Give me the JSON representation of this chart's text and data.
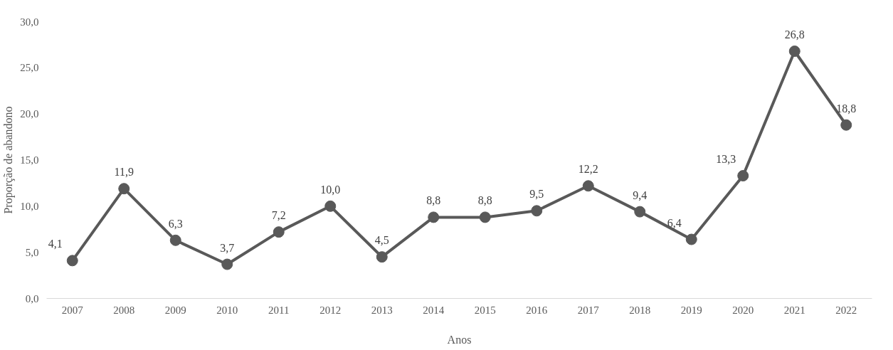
{
  "chart_data": {
    "type": "line",
    "xlabel": "Anos",
    "ylabel": "Proporção de abandono",
    "categories": [
      "2007",
      "2008",
      "2009",
      "2010",
      "2011",
      "2012",
      "2013",
      "2014",
      "2015",
      "2016",
      "2017",
      "2018",
      "2019",
      "2020",
      "2021",
      "2022"
    ],
    "series": [
      {
        "color": "#595959",
        "values": [
          4.1,
          11.9,
          6.3,
          3.7,
          7.2,
          10.0,
          4.5,
          8.8,
          8.8,
          9.5,
          12.2,
          9.4,
          6.4,
          13.3,
          26.8,
          18.8
        ],
        "value_labels": [
          "4,1",
          "11,9",
          "6,3",
          "3,7",
          "7,2",
          "10,0",
          "4,5",
          "8,8",
          "8,8",
          "9,5",
          "12,2",
          "9,4",
          "6,4",
          "13,3",
          "26,8",
          "18,8"
        ]
      }
    ],
    "ylim": [
      0,
      30
    ],
    "yticks": [
      {
        "value": 0,
        "label": "0,0"
      },
      {
        "value": 5,
        "label": "5,0"
      },
      {
        "value": 10,
        "label": "10,0"
      },
      {
        "value": 15,
        "label": "15,0"
      },
      {
        "value": 20,
        "label": "20,0"
      },
      {
        "value": 25,
        "label": "25,0"
      },
      {
        "value": 30,
        "label": "30,0"
      }
    ],
    "marker": "circle",
    "line_style": "solid"
  }
}
